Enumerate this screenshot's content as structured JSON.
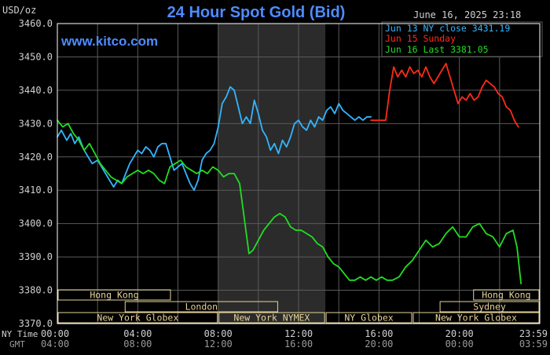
{
  "title": "24 Hour Spot Gold (Bid)",
  "unit_label": "USD/oz",
  "timestamp": "June 16, 2025 23:18",
  "watermark": "www.kitco.com",
  "legend": [
    {
      "label": "Jun 13 NY close 3431.19",
      "color": "#33b5ff"
    },
    {
      "label": "Jun 15 Sunday",
      "color": "#ff2a1a"
    },
    {
      "label": "Jun 16 Last 3381.05",
      "color": "#22dd22"
    }
  ],
  "x_row_labels": {
    "ny": "NY Time",
    "gmt": "GMT"
  },
  "colors": {
    "background": "#000000",
    "grid": "#5a5a5a",
    "frame": "#ffffff",
    "title": "#4d8cff",
    "shade": "#2b2b2b",
    "session_bar": "#e6d39a",
    "session_text": "#e6d39a",
    "tick_text": "#d0d0d0",
    "tick_text_dim": "#9a9a9a"
  },
  "sessions": [
    {
      "label": "Hong Kong",
      "start": 0,
      "end": 8.5,
      "row": 0
    },
    {
      "label": "London",
      "start": 5,
      "end": 16.5,
      "row": 1
    },
    {
      "label": "New York Globex",
      "start": 0,
      "end": 12,
      "row": 2
    },
    {
      "label": "New York NYMEX",
      "start": 12,
      "end": 20,
      "row": 2
    },
    {
      "label": "NY Globex",
      "start": 20,
      "end": 26.5,
      "row": 2
    },
    {
      "label": "Hong Kong",
      "start": 31,
      "end": 36,
      "row": 0
    },
    {
      "label": "Sydney",
      "start": 28.5,
      "end": 36,
      "row": 1
    },
    {
      "label": "New York Globex",
      "start": 26.5,
      "end": 36,
      "row": 2
    }
  ],
  "chart_data": {
    "type": "line",
    "title": "24 Hour Spot Gold (Bid)",
    "ylabel": "USD/oz",
    "ylim": [
      3370,
      3460
    ],
    "yticks": [
      "3370.0",
      "3380.0",
      "3390.0",
      "3400.0",
      "3410.0",
      "3420.0",
      "3430.0",
      "3440.0",
      "3450.0",
      "3460.0"
    ],
    "x_unit": "hours (NY time)",
    "xlim": [
      0,
      36
    ],
    "xticks_ny": [
      "00:00",
      "04:00",
      "08:00",
      "12:00",
      "16:00",
      "20:00",
      "23:59"
    ],
    "xticks_gmt": [
      "04:00",
      "08:00",
      "12:00",
      "16:00",
      "20:00",
      "00:00",
      "03:59"
    ],
    "grid": true,
    "legend_position": "top-right",
    "shaded_range": [
      12,
      20
    ],
    "series": [
      {
        "name": "Jun 13 NY close 3431.19",
        "color": "#33b5ff",
        "points": [
          [
            0,
            3426
          ],
          [
            0.3,
            3428
          ],
          [
            0.7,
            3425
          ],
          [
            1.0,
            3427
          ],
          [
            1.3,
            3424
          ],
          [
            1.6,
            3426
          ],
          [
            2.0,
            3422
          ],
          [
            2.3,
            3420
          ],
          [
            2.6,
            3418
          ],
          [
            3.0,
            3419
          ],
          [
            3.3,
            3417
          ],
          [
            3.6,
            3415
          ],
          [
            3.9,
            3413
          ],
          [
            4.2,
            3411
          ],
          [
            4.5,
            3413
          ],
          [
            4.8,
            3412
          ],
          [
            5.1,
            3415
          ],
          [
            5.4,
            3418
          ],
          [
            5.7,
            3420
          ],
          [
            6.0,
            3422
          ],
          [
            6.3,
            3421
          ],
          [
            6.6,
            3423
          ],
          [
            6.9,
            3422
          ],
          [
            7.2,
            3420
          ],
          [
            7.5,
            3423
          ],
          [
            7.8,
            3424
          ],
          [
            8.1,
            3424
          ],
          [
            8.4,
            3420
          ],
          [
            8.7,
            3416
          ],
          [
            9.0,
            3417
          ],
          [
            9.3,
            3418
          ],
          [
            9.6,
            3415
          ],
          [
            9.9,
            3412
          ],
          [
            10.2,
            3410
          ],
          [
            10.5,
            3413
          ],
          [
            10.8,
            3419
          ],
          [
            11.1,
            3421
          ],
          [
            11.4,
            3422
          ],
          [
            11.7,
            3424
          ],
          [
            12.0,
            3429
          ],
          [
            12.3,
            3436
          ],
          [
            12.6,
            3438
          ],
          [
            12.9,
            3441
          ],
          [
            13.2,
            3440
          ],
          [
            13.5,
            3435
          ],
          [
            13.8,
            3430
          ],
          [
            14.1,
            3432
          ],
          [
            14.4,
            3430
          ],
          [
            14.7,
            3437
          ],
          [
            15.0,
            3433
          ],
          [
            15.3,
            3428
          ],
          [
            15.6,
            3426
          ],
          [
            15.9,
            3422
          ],
          [
            16.2,
            3424
          ],
          [
            16.5,
            3421
          ],
          [
            16.8,
            3425
          ],
          [
            17.1,
            3423
          ],
          [
            17.4,
            3426
          ],
          [
            17.7,
            3430
          ],
          [
            18.0,
            3431
          ],
          [
            18.3,
            3429
          ],
          [
            18.6,
            3428
          ],
          [
            18.9,
            3431
          ],
          [
            19.2,
            3429
          ],
          [
            19.5,
            3432
          ],
          [
            19.8,
            3431
          ],
          [
            20.1,
            3434
          ],
          [
            20.4,
            3435
          ],
          [
            20.7,
            3433
          ],
          [
            21.0,
            3436
          ],
          [
            21.3,
            3434
          ],
          [
            21.6,
            3433
          ],
          [
            21.9,
            3432
          ],
          [
            22.2,
            3431
          ],
          [
            22.5,
            3432
          ],
          [
            22.8,
            3431
          ],
          [
            23.1,
            3432
          ],
          [
            23.4,
            3432
          ]
        ]
      },
      {
        "name": "Jun 15 Sunday",
        "color": "#ff2a1a",
        "points": [
          [
            23.4,
            3431
          ],
          [
            24.5,
            3431
          ],
          [
            24.8,
            3440
          ],
          [
            25.1,
            3447
          ],
          [
            25.4,
            3444
          ],
          [
            25.7,
            3446
          ],
          [
            26.0,
            3444
          ],
          [
            26.3,
            3447
          ],
          [
            26.6,
            3445
          ],
          [
            26.9,
            3446
          ],
          [
            27.2,
            3444
          ],
          [
            27.5,
            3447
          ],
          [
            27.8,
            3444
          ],
          [
            28.1,
            3442
          ],
          [
            28.4,
            3444
          ],
          [
            28.7,
            3446
          ],
          [
            29.0,
            3448
          ],
          [
            29.3,
            3444
          ],
          [
            29.6,
            3440
          ],
          [
            29.9,
            3436
          ],
          [
            30.2,
            3438
          ],
          [
            30.5,
            3437
          ],
          [
            30.8,
            3439
          ],
          [
            31.1,
            3437
          ],
          [
            31.4,
            3438
          ],
          [
            31.7,
            3441
          ],
          [
            32.0,
            3443
          ],
          [
            32.3,
            3442
          ],
          [
            32.6,
            3441
          ],
          [
            32.9,
            3439
          ],
          [
            33.2,
            3438
          ],
          [
            33.5,
            3435
          ],
          [
            33.8,
            3434
          ],
          [
            34.1,
            3431
          ],
          [
            34.4,
            3429
          ]
        ]
      },
      {
        "name": "Jun 16 Last 3381.05",
        "color": "#22dd22",
        "points": [
          [
            0,
            3431
          ],
          [
            0.4,
            3429
          ],
          [
            0.8,
            3430
          ],
          [
            1.2,
            3427
          ],
          [
            1.6,
            3425
          ],
          [
            2.0,
            3422
          ],
          [
            2.4,
            3424
          ],
          [
            2.8,
            3421
          ],
          [
            3.2,
            3418
          ],
          [
            3.6,
            3416
          ],
          [
            4.0,
            3414
          ],
          [
            4.4,
            3413
          ],
          [
            4.8,
            3412
          ],
          [
            5.2,
            3414
          ],
          [
            5.6,
            3415
          ],
          [
            6.0,
            3416
          ],
          [
            6.4,
            3415
          ],
          [
            6.8,
            3416
          ],
          [
            7.2,
            3415
          ],
          [
            7.6,
            3413
          ],
          [
            8.0,
            3412
          ],
          [
            8.4,
            3417
          ],
          [
            8.8,
            3418
          ],
          [
            9.2,
            3419
          ],
          [
            9.6,
            3417
          ],
          [
            10.0,
            3416
          ],
          [
            10.4,
            3415
          ],
          [
            10.8,
            3416
          ],
          [
            11.2,
            3415
          ],
          [
            11.6,
            3417
          ],
          [
            12.0,
            3416
          ],
          [
            12.4,
            3414
          ],
          [
            12.8,
            3415
          ],
          [
            13.2,
            3415
          ],
          [
            13.6,
            3412
          ],
          [
            14.0,
            3400
          ],
          [
            14.3,
            3391
          ],
          [
            14.6,
            3392
          ],
          [
            15.0,
            3395
          ],
          [
            15.4,
            3398
          ],
          [
            15.8,
            3400
          ],
          [
            16.2,
            3402
          ],
          [
            16.6,
            3403
          ],
          [
            17.0,
            3402
          ],
          [
            17.4,
            3399
          ],
          [
            17.8,
            3398
          ],
          [
            18.2,
            3398
          ],
          [
            18.6,
            3397
          ],
          [
            19.0,
            3396
          ],
          [
            19.4,
            3394
          ],
          [
            19.8,
            3393
          ],
          [
            20.2,
            3390
          ],
          [
            20.6,
            3388
          ],
          [
            21.0,
            3387
          ],
          [
            21.4,
            3385
          ],
          [
            21.8,
            3383
          ],
          [
            22.2,
            3383
          ],
          [
            22.6,
            3384
          ],
          [
            23.0,
            3383
          ],
          [
            23.4,
            3384
          ],
          [
            23.8,
            3383
          ],
          [
            24.2,
            3384
          ],
          [
            24.6,
            3383
          ],
          [
            25.0,
            3383
          ],
          [
            25.5,
            3384
          ],
          [
            26.0,
            3387
          ],
          [
            26.5,
            3389
          ],
          [
            27.0,
            3392
          ],
          [
            27.5,
            3395
          ],
          [
            28.0,
            3393
          ],
          [
            28.5,
            3394
          ],
          [
            29.0,
            3397
          ],
          [
            29.5,
            3399
          ],
          [
            30.0,
            3396
          ],
          [
            30.5,
            3396
          ],
          [
            31.0,
            3399
          ],
          [
            31.5,
            3400
          ],
          [
            32.0,
            3397
          ],
          [
            32.5,
            3396
          ],
          [
            33.0,
            3393
          ],
          [
            33.5,
            3397
          ],
          [
            34.0,
            3398
          ],
          [
            34.3,
            3393
          ],
          [
            34.6,
            3382
          ]
        ]
      }
    ]
  }
}
